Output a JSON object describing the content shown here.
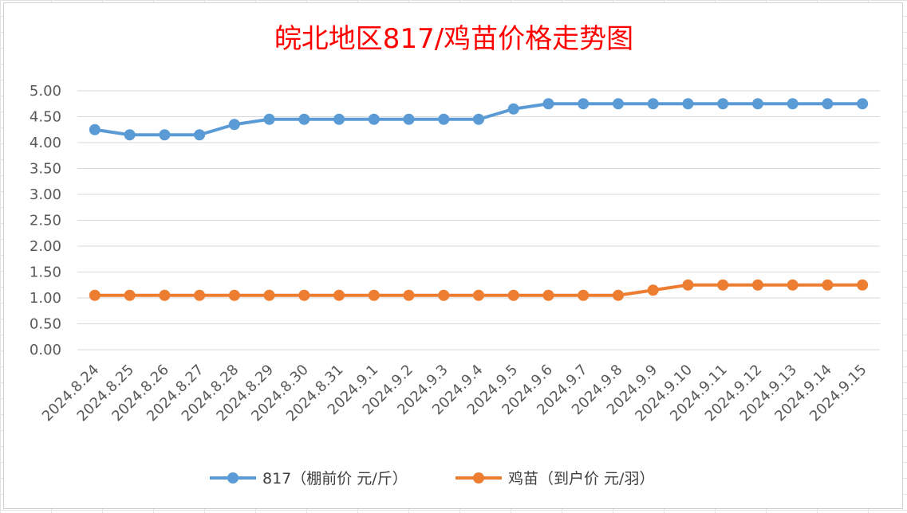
{
  "chart_data": {
    "type": "line",
    "title": "皖北地区817/鸡苗价格走势图",
    "xlabel": "",
    "ylabel": "",
    "ylim": [
      0,
      5
    ],
    "yticks": [
      "0.00",
      "0.50",
      "1.00",
      "1.50",
      "2.00",
      "2.50",
      "3.00",
      "3.50",
      "4.00",
      "4.50",
      "5.00"
    ],
    "grid": "horizontal",
    "legend_position": "bottom",
    "categories": [
      "2024.8.24",
      "2024.8.25",
      "2024.8.26",
      "2024.8.27",
      "2024.8.28",
      "2024.8.29",
      "2024.8.30",
      "2024.8.31",
      "2024.9.1",
      "2024.9.2",
      "2024.9.3",
      "2024.9.4",
      "2024.9.5",
      "2024.9.6",
      "2024.9.7",
      "2024.9.8",
      "2024.9.9",
      "2024.9.10",
      "2024.9.11",
      "2024.9.12",
      "2024.9.13",
      "2024.9.14",
      "2024.9.15"
    ],
    "series": [
      {
        "name": "817（棚前价 元/斤）",
        "color": "#5b9bd5",
        "values": [
          4.25,
          4.15,
          4.15,
          4.15,
          4.35,
          4.45,
          4.45,
          4.45,
          4.45,
          4.45,
          4.45,
          4.45,
          4.65,
          4.75,
          4.75,
          4.75,
          4.75,
          4.75,
          4.75,
          4.75,
          4.75,
          4.75,
          4.75
        ]
      },
      {
        "name": "鸡苗（到户价 元/羽）",
        "color": "#ed7d31",
        "values": [
          1.05,
          1.05,
          1.05,
          1.05,
          1.05,
          1.05,
          1.05,
          1.05,
          1.05,
          1.05,
          1.05,
          1.05,
          1.05,
          1.05,
          1.05,
          1.05,
          1.15,
          1.25,
          1.25,
          1.25,
          1.25,
          1.25,
          1.25
        ]
      }
    ]
  }
}
